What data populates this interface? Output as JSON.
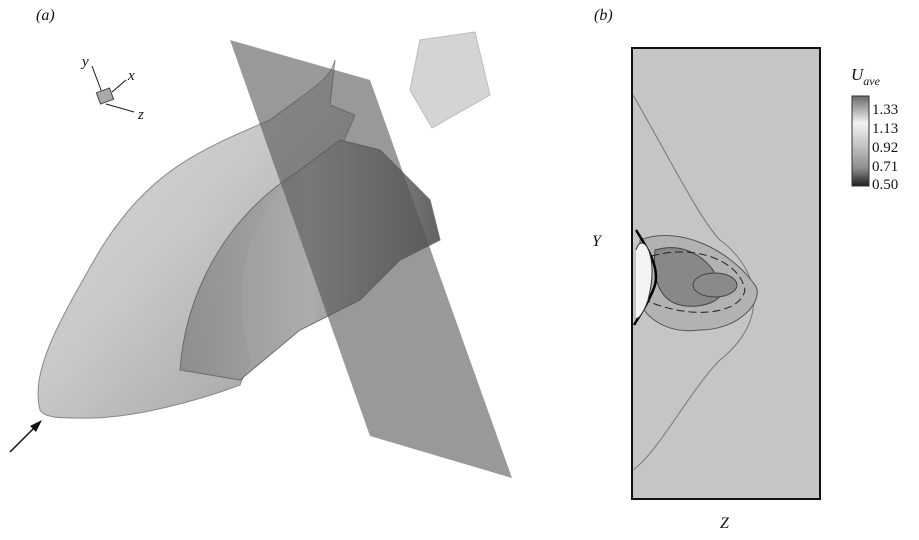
{
  "panel_a": {
    "label": "(a)",
    "axes": {
      "y": "y",
      "x": "x",
      "z": "z"
    }
  },
  "panel_b": {
    "label": "(b)",
    "y_label": "Y",
    "x_label": "Z",
    "colorbar": {
      "title": {
        "symbol": "U",
        "subscript": "ave"
      },
      "labels": [
        "1.33",
        "1.13",
        "0.92",
        "0.71",
        "0.50"
      ]
    }
  }
}
